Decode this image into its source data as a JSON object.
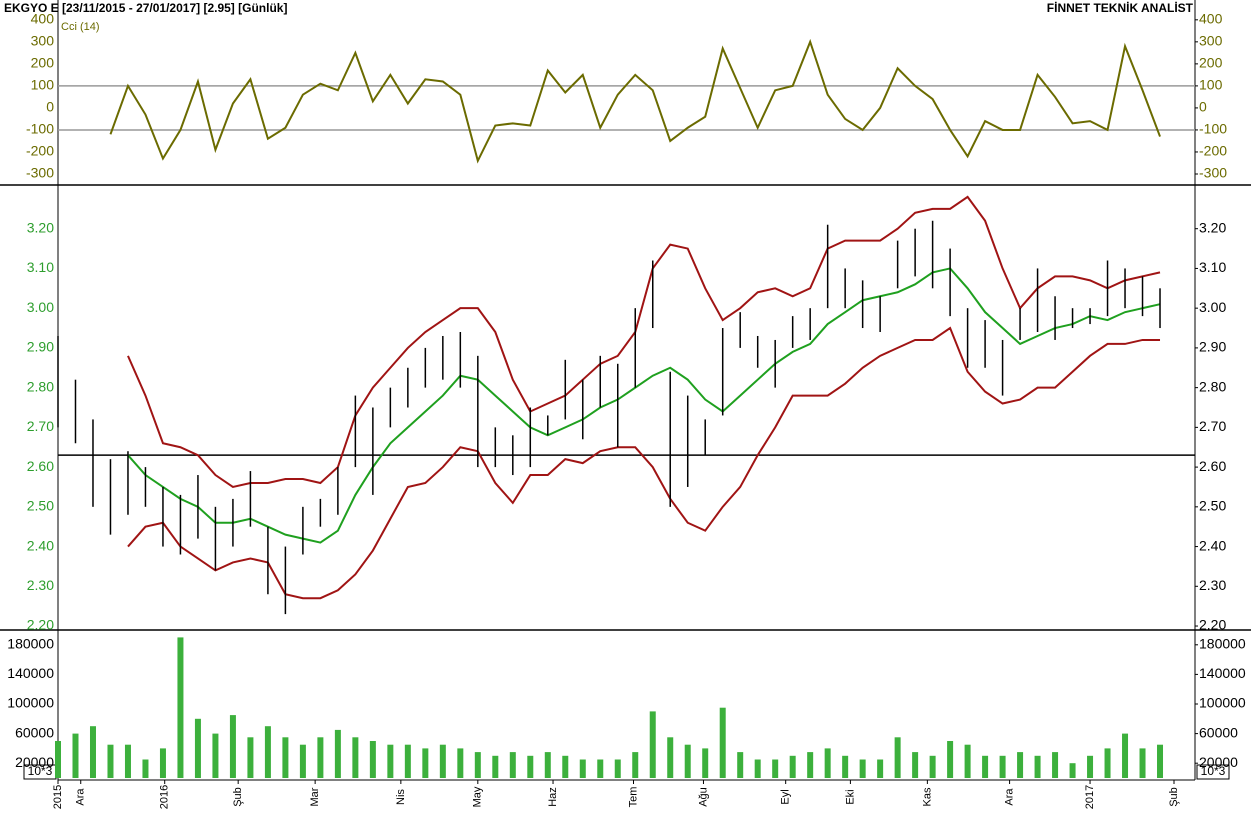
{
  "header": {
    "title": "EKGYO E  [23/11/2015 - 27/01/2017]  [2.95]  [Günlük]",
    "brand": "FİNNET TEKNİK ANALİST"
  },
  "chart_data": [
    {
      "type": "line",
      "label": "Cci (14)",
      "color": "#6b6b00",
      "ylim": [
        -350,
        490
      ],
      "yticks": [
        400,
        300,
        200,
        100,
        0,
        -100,
        -200,
        -300
      ],
      "ref_lines": [
        100,
        -100
      ],
      "xlim": [
        0,
        65
      ],
      "x": [
        0,
        1,
        2,
        3,
        4,
        5,
        6,
        7,
        8,
        9,
        10,
        11,
        12,
        13,
        14,
        15,
        16,
        17,
        18,
        19,
        20,
        21,
        22,
        23,
        24,
        25,
        26,
        27,
        28,
        29,
        30,
        31,
        32,
        33,
        34,
        35,
        36,
        37,
        38,
        39,
        40,
        41,
        42,
        43,
        44,
        45,
        46,
        47,
        48,
        49,
        50,
        51,
        52,
        53,
        54,
        55,
        56,
        57,
        58,
        59,
        60,
        61,
        62,
        63
      ],
      "values": [
        null,
        null,
        null,
        -120,
        100,
        -30,
        -230,
        -100,
        120,
        -190,
        20,
        130,
        -140,
        -90,
        60,
        110,
        80,
        250,
        30,
        150,
        20,
        130,
        120,
        60,
        -240,
        -80,
        -70,
        -80,
        170,
        70,
        150,
        -90,
        60,
        150,
        80,
        -150,
        -90,
        -40,
        270,
        90,
        -90,
        80,
        100,
        300,
        60,
        -50,
        -100,
        0,
        180,
        100,
        40,
        -100,
        -220,
        -60,
        -100,
        -100,
        150,
        50,
        -70,
        -60,
        -100,
        280,
        80,
        -130
      ]
    },
    {
      "type": "range",
      "color": "#000000",
      "ylim": [
        2.19,
        3.31
      ],
      "hline": 2.63,
      "xlim": [
        0,
        65
      ],
      "yticks": [
        {
          "value": 2.2,
          "label": "2.20"
        },
        {
          "value": 2.3,
          "label": "2.30"
        },
        {
          "value": 2.4,
          "label": "2.40"
        },
        {
          "value": 2.5,
          "label": "2.50"
        },
        {
          "value": 2.6,
          "label": "2.60"
        },
        {
          "value": 2.7,
          "label": "2.70"
        },
        {
          "value": 2.8,
          "label": "2.80"
        },
        {
          "value": 2.9,
          "label": "2.90"
        },
        {
          "value": 3.0,
          "label": "3.00"
        },
        {
          "value": 3.1,
          "label": "3.10"
        },
        {
          "value": 3.2,
          "label": "3.20"
        }
      ],
      "x": [
        0,
        1,
        2,
        3,
        4,
        5,
        6,
        7,
        8,
        9,
        10,
        11,
        12,
        13,
        14,
        15,
        16,
        17,
        18,
        19,
        20,
        21,
        22,
        23,
        24,
        25,
        26,
        27,
        28,
        29,
        30,
        31,
        32,
        33,
        34,
        35,
        36,
        37,
        38,
        39,
        40,
        41,
        42,
        43,
        44,
        45,
        46,
        47,
        48,
        49,
        50,
        51,
        52,
        53,
        54,
        55,
        56,
        57,
        58,
        59,
        60,
        61,
        62,
        63
      ],
      "high": [
        2.93,
        2.82,
        2.72,
        2.62,
        2.64,
        2.6,
        2.55,
        2.53,
        2.58,
        2.5,
        2.52,
        2.59,
        2.45,
        2.4,
        2.5,
        2.52,
        2.6,
        2.78,
        2.75,
        2.8,
        2.85,
        2.9,
        2.93,
        2.94,
        2.88,
        2.7,
        2.68,
        2.75,
        2.73,
        2.87,
        2.82,
        2.88,
        2.86,
        3.0,
        3.12,
        2.84,
        2.78,
        2.72,
        2.95,
        2.99,
        2.93,
        2.92,
        2.98,
        3.0,
        3.21,
        3.1,
        3.07,
        3.03,
        3.17,
        3.2,
        3.22,
        3.15,
        3.0,
        2.97,
        2.92,
        3.0,
        3.1,
        3.03,
        3.0,
        3.0,
        3.12,
        3.1,
        3.08,
        3.05
      ],
      "low": [
        2.7,
        2.66,
        2.5,
        2.43,
        2.48,
        2.5,
        2.4,
        2.38,
        2.42,
        2.34,
        2.4,
        2.45,
        2.28,
        2.23,
        2.38,
        2.45,
        2.48,
        2.6,
        2.53,
        2.7,
        2.75,
        2.8,
        2.82,
        2.8,
        2.6,
        2.6,
        2.58,
        2.6,
        2.68,
        2.72,
        2.67,
        2.75,
        2.65,
        2.8,
        2.95,
        2.5,
        2.55,
        2.63,
        2.73,
        2.9,
        2.85,
        2.8,
        2.9,
        2.92,
        3.0,
        3.0,
        2.95,
        2.94,
        3.05,
        3.08,
        3.05,
        2.98,
        2.85,
        2.85,
        2.78,
        2.92,
        2.94,
        2.92,
        2.95,
        2.96,
        2.98,
        3.0,
        2.98,
        2.95
      ],
      "lines": [
        {
          "color": "#a01414",
          "values": [
            null,
            null,
            null,
            null,
            2.88,
            2.78,
            2.66,
            2.65,
            2.63,
            2.58,
            2.55,
            2.56,
            2.56,
            2.57,
            2.57,
            2.56,
            2.6,
            2.73,
            2.8,
            2.85,
            2.9,
            2.94,
            2.97,
            3.0,
            3.0,
            2.94,
            2.82,
            2.74,
            2.76,
            2.78,
            2.82,
            2.86,
            2.88,
            2.94,
            3.1,
            3.16,
            3.15,
            3.05,
            2.97,
            3.0,
            3.04,
            3.05,
            3.03,
            3.05,
            3.15,
            3.17,
            3.17,
            3.17,
            3.2,
            3.24,
            3.25,
            3.25,
            3.28,
            3.22,
            3.1,
            3.0,
            3.05,
            3.08,
            3.08,
            3.07,
            3.05,
            3.07,
            3.08,
            3.09
          ]
        },
        {
          "color": "#1fa01f",
          "values": [
            null,
            null,
            null,
            null,
            2.63,
            2.58,
            2.55,
            2.52,
            2.5,
            2.46,
            2.46,
            2.47,
            2.45,
            2.43,
            2.42,
            2.41,
            2.44,
            2.53,
            2.6,
            2.66,
            2.7,
            2.74,
            2.78,
            2.83,
            2.82,
            2.78,
            2.74,
            2.7,
            2.68,
            2.7,
            2.72,
            2.75,
            2.77,
            2.8,
            2.83,
            2.85,
            2.82,
            2.77,
            2.74,
            2.78,
            2.82,
            2.86,
            2.89,
            2.91,
            2.96,
            2.99,
            3.02,
            3.03,
            3.04,
            3.06,
            3.09,
            3.1,
            3.05,
            2.99,
            2.95,
            2.91,
            2.93,
            2.95,
            2.96,
            2.98,
            2.97,
            2.99,
            3.0,
            3.01
          ]
        },
        {
          "color": "#a01414",
          "values": [
            null,
            null,
            null,
            null,
            2.4,
            2.45,
            2.46,
            2.4,
            2.37,
            2.34,
            2.36,
            2.37,
            2.36,
            2.28,
            2.27,
            2.27,
            2.29,
            2.33,
            2.39,
            2.47,
            2.55,
            2.56,
            2.6,
            2.65,
            2.64,
            2.56,
            2.51,
            2.58,
            2.58,
            2.62,
            2.61,
            2.64,
            2.65,
            2.65,
            2.6,
            2.52,
            2.46,
            2.44,
            2.5,
            2.55,
            2.63,
            2.7,
            2.78,
            2.78,
            2.78,
            2.81,
            2.85,
            2.88,
            2.9,
            2.92,
            2.92,
            2.95,
            2.84,
            2.79,
            2.76,
            2.77,
            2.8,
            2.8,
            2.84,
            2.88,
            2.91,
            2.91,
            2.92,
            2.92
          ]
        }
      ]
    },
    {
      "type": "bar",
      "unit": "10*3",
      "color": "#3cb03c",
      "ylim": [
        0,
        200000
      ],
      "yticks": [
        180000,
        140000,
        100000,
        60000,
        20000
      ],
      "xlim": [
        0,
        65
      ],
      "xticks": [
        {
          "value": 0,
          "label": "2015"
        },
        {
          "value": 1.3,
          "label": "Ara"
        },
        {
          "value": 6.1,
          "label": "2016"
        },
        {
          "value": 10.3,
          "label": "Şub"
        },
        {
          "value": 14.7,
          "label": "Mar"
        },
        {
          "value": 19.6,
          "label": "Nis"
        },
        {
          "value": 24,
          "label": "May"
        },
        {
          "value": 28.3,
          "label": "Haz"
        },
        {
          "value": 32.9,
          "label": "Tem"
        },
        {
          "value": 36.9,
          "label": "Ağu"
        },
        {
          "value": 41.6,
          "label": "Eyl"
        },
        {
          "value": 45.3,
          "label": "Eki"
        },
        {
          "value": 49.7,
          "label": "Kas"
        },
        {
          "value": 54.4,
          "label": "Ara"
        },
        {
          "value": 59,
          "label": "2017"
        },
        {
          "value": 63.8,
          "label": "Şub"
        }
      ],
      "x": [
        0,
        1,
        2,
        3,
        4,
        5,
        6,
        7,
        8,
        9,
        10,
        11,
        12,
        13,
        14,
        15,
        16,
        17,
        18,
        19,
        20,
        21,
        22,
        23,
        24,
        25,
        26,
        27,
        28,
        29,
        30,
        31,
        32,
        33,
        34,
        35,
        36,
        37,
        38,
        39,
        40,
        41,
        42,
        43,
        44,
        45,
        46,
        47,
        48,
        49,
        50,
        51,
        52,
        53,
        54,
        55,
        56,
        57,
        58,
        59,
        60,
        61,
        62,
        63
      ],
      "values": [
        50000,
        60000,
        70000,
        45000,
        45000,
        25000,
        40000,
        190000,
        80000,
        60000,
        85000,
        55000,
        70000,
        55000,
        45000,
        55000,
        65000,
        55000,
        50000,
        45000,
        45000,
        40000,
        45000,
        40000,
        35000,
        30000,
        35000,
        30000,
        35000,
        30000,
        25000,
        25000,
        25000,
        35000,
        90000,
        55000,
        45000,
        40000,
        95000,
        35000,
        25000,
        25000,
        30000,
        35000,
        40000,
        30000,
        25000,
        25000,
        55000,
        35000,
        30000,
        50000,
        45000,
        30000,
        30000,
        35000,
        30000,
        35000,
        20000,
        30000,
        40000,
        60000,
        40000,
        45000
      ]
    }
  ]
}
